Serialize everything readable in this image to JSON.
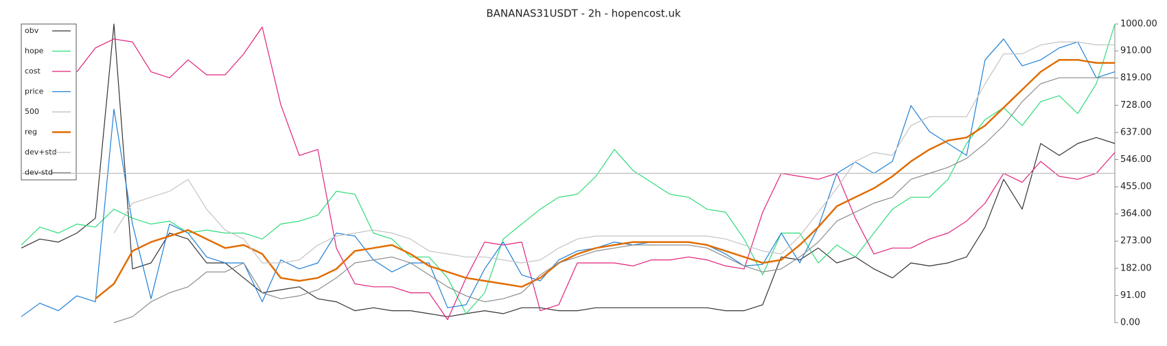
{
  "chart_data": {
    "type": "line",
    "title": "BANANAS31USDT - 2h - hopencost.uk",
    "ylim": [
      0,
      1000
    ],
    "yticks": [
      {
        "value": 0,
        "label": "0.00"
      },
      {
        "value": 91,
        "label": "91.00"
      },
      {
        "value": 182,
        "label": "182.00"
      },
      {
        "value": 273,
        "label": "273.00"
      },
      {
        "value": 364,
        "label": "364.00"
      },
      {
        "value": 455,
        "label": "455.00"
      },
      {
        "value": 546,
        "label": "546.00"
      },
      {
        "value": 637,
        "label": "637.00"
      },
      {
        "value": 728,
        "label": "728.00"
      },
      {
        "value": 819,
        "label": "819.00"
      },
      {
        "value": 910,
        "label": "910.00"
      },
      {
        "value": 1000,
        "label": "1000.00"
      }
    ],
    "legend": "top-left",
    "series": [
      {
        "name": "obv",
        "color": "#333333",
        "width": 1.2,
        "values": [
          250,
          280,
          270,
          300,
          350,
          1000,
          180,
          200,
          300,
          280,
          200,
          200,
          150,
          100,
          110,
          120,
          80,
          70,
          40,
          50,
          40,
          40,
          30,
          20,
          30,
          40,
          30,
          50,
          50,
          40,
          40,
          50,
          50,
          50,
          50,
          50,
          50,
          50,
          40,
          40,
          60,
          220,
          210,
          250,
          200,
          220,
          180,
          150,
          200,
          190,
          200,
          220,
          320,
          480,
          380,
          600,
          560,
          600,
          620,
          600
        ]
      },
      {
        "name": "hope",
        "color": "#2edb7a",
        "width": 1.2,
        "values": [
          260,
          320,
          300,
          330,
          320,
          380,
          350,
          330,
          340,
          300,
          310,
          300,
          300,
          280,
          330,
          340,
          360,
          440,
          430,
          300,
          280,
          220,
          220,
          150,
          30,
          100,
          280,
          330,
          380,
          420,
          430,
          490,
          580,
          510,
          470,
          430,
          420,
          380,
          370,
          280,
          160,
          300,
          300,
          200,
          260,
          220,
          300,
          380,
          420,
          420,
          480,
          600,
          680,
          720,
          660,
          740,
          760,
          700,
          800,
          1000
        ]
      },
      {
        "name": "cost",
        "color": "#e0217a",
        "width": 1.2,
        "values": [
          null,
          null,
          null,
          840,
          920,
          950,
          940,
          840,
          820,
          880,
          830,
          830,
          900,
          990,
          730,
          560,
          580,
          250,
          130,
          120,
          120,
          100,
          100,
          10,
          150,
          270,
          260,
          270,
          40,
          60,
          200,
          200,
          200,
          190,
          210,
          210,
          220,
          210,
          190,
          180,
          370,
          500,
          490,
          480,
          500,
          350,
          230,
          250,
          250,
          280,
          300,
          340,
          400,
          500,
          470,
          540,
          490,
          480,
          500,
          570
        ]
      },
      {
        "name": "price",
        "color": "#1f7fd6",
        "width": 1.2,
        "values": [
          20,
          65,
          40,
          90,
          70,
          715,
          330,
          80,
          330,
          300,
          220,
          200,
          200,
          70,
          210,
          180,
          200,
          300,
          290,
          210,
          170,
          200,
          200,
          50,
          60,
          180,
          270,
          160,
          140,
          210,
          240,
          250,
          270,
          260,
          270,
          270,
          270,
          260,
          230,
          190,
          195,
          300,
          200,
          320,
          500,
          538,
          500,
          540,
          727,
          640,
          600,
          560,
          880,
          950,
          860,
          880,
          920,
          940,
          820,
          840
        ]
      },
      {
        "name": "500",
        "color": "#bbbbbb",
        "width": 1.2,
        "values": [
          500,
          500,
          500,
          500,
          500,
          500,
          500,
          500,
          500,
          500,
          500,
          500,
          500,
          500,
          500,
          500,
          500,
          500,
          500,
          500,
          500,
          500,
          500,
          500,
          500,
          500,
          500,
          500,
          500,
          500,
          500,
          500,
          500,
          500,
          500,
          500,
          500,
          500,
          500,
          500,
          500,
          500,
          500,
          500,
          500,
          500,
          500,
          500,
          500,
          500,
          500,
          500,
          500,
          500,
          500,
          500,
          500,
          500,
          500,
          500
        ]
      },
      {
        "name": "reg",
        "color": "#e06c00",
        "width": 2.5,
        "values": [
          null,
          null,
          null,
          null,
          80,
          130,
          240,
          270,
          290,
          310,
          280,
          250,
          260,
          230,
          150,
          140,
          150,
          180,
          240,
          250,
          260,
          230,
          190,
          170,
          150,
          140,
          130,
          120,
          150,
          200,
          230,
          250,
          260,
          270,
          270,
          270,
          270,
          260,
          240,
          220,
          200,
          210,
          260,
          320,
          390,
          420,
          450,
          490,
          540,
          580,
          610,
          620,
          660,
          720,
          780,
          840,
          880,
          880,
          870,
          870
        ]
      },
      {
        "name": "dev+std",
        "color": "#c4c4c4",
        "width": 1.2,
        "values": [
          null,
          null,
          null,
          null,
          null,
          300,
          400,
          420,
          440,
          480,
          380,
          310,
          280,
          200,
          200,
          210,
          260,
          290,
          300,
          310,
          300,
          280,
          240,
          230,
          220,
          220,
          210,
          200,
          210,
          250,
          280,
          290,
          290,
          290,
          290,
          290,
          290,
          290,
          280,
          260,
          240,
          230,
          290,
          370,
          450,
          540,
          570,
          560,
          660,
          690,
          690,
          690,
          800,
          900,
          900,
          930,
          940,
          940,
          930,
          930
        ]
      },
      {
        "name": "dev-std",
        "color": "#8c8c8c",
        "width": 1.2,
        "values": [
          null,
          null,
          null,
          null,
          null,
          0,
          20,
          70,
          100,
          120,
          170,
          170,
          200,
          100,
          80,
          90,
          110,
          150,
          200,
          210,
          220,
          200,
          160,
          120,
          90,
          70,
          80,
          100,
          160,
          200,
          220,
          240,
          250,
          260,
          260,
          260,
          260,
          250,
          220,
          190,
          170,
          180,
          220,
          270,
          340,
          370,
          400,
          420,
          480,
          500,
          520,
          550,
          600,
          660,
          740,
          800,
          820,
          820,
          820,
          820
        ]
      }
    ]
  }
}
